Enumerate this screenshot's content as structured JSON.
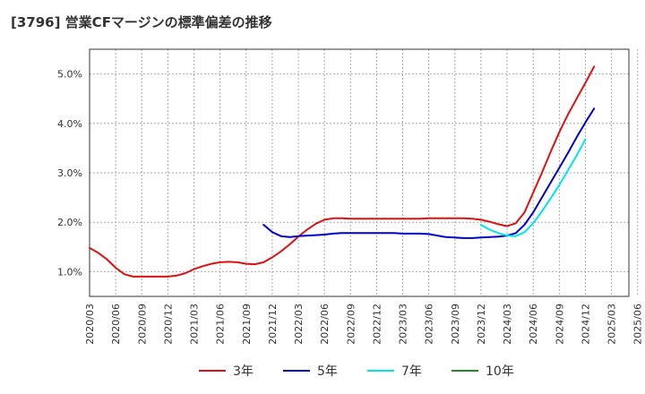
{
  "title": "[3796]  営業CFマージンの標準偏差の推移",
  "chart_data": {
    "type": "line",
    "title": "[3796]  営業CFマージンの標準偏差の推移",
    "xlabel": "",
    "ylabel": "",
    "y_unit": "%",
    "ylim": [
      0.5,
      5.5
    ],
    "yticks": [
      1.0,
      2.0,
      3.0,
      4.0,
      5.0
    ],
    "ytick_labels": [
      "1.0%",
      "2.0%",
      "3.0%",
      "4.0%",
      "5.0%"
    ],
    "x_tick_labels": [
      "2020/03",
      "2020/06",
      "2020/09",
      "2020/12",
      "2021/03",
      "2021/06",
      "2021/09",
      "2021/12",
      "2022/03",
      "2022/06",
      "2022/09",
      "2022/12",
      "2023/03",
      "2023/06",
      "2023/09",
      "2023/12",
      "2024/03",
      "2024/06",
      "2024/09",
      "2024/12",
      "2025/03",
      "2025/06"
    ],
    "x_months": [
      "2020/03",
      "2020/04",
      "2020/05",
      "2020/06",
      "2020/07",
      "2020/08",
      "2020/09",
      "2020/10",
      "2020/11",
      "2020/12",
      "2021/01",
      "2021/02",
      "2021/03",
      "2021/04",
      "2021/05",
      "2021/06",
      "2021/07",
      "2021/08",
      "2021/09",
      "2021/10",
      "2021/11",
      "2021/12",
      "2022/01",
      "2022/02",
      "2022/03",
      "2022/04",
      "2022/05",
      "2022/06",
      "2022/07",
      "2022/08",
      "2022/09",
      "2022/10",
      "2022/11",
      "2022/12",
      "2023/01",
      "2023/02",
      "2023/03",
      "2023/04",
      "2023/05",
      "2023/06",
      "2023/07",
      "2023/08",
      "2023/09",
      "2023/10",
      "2023/11",
      "2023/12",
      "2024/01",
      "2024/02",
      "2024/03",
      "2024/04",
      "2024/05",
      "2024/06",
      "2024/07",
      "2024/08",
      "2024/09",
      "2024/10",
      "2024/11",
      "2024/12",
      "2025/01",
      "2025/02",
      "2025/03"
    ],
    "grid": true,
    "legend_position": "bottom",
    "series": [
      {
        "name": "3年",
        "color": "#dd1111",
        "values": [
          1.48,
          1.38,
          1.25,
          1.08,
          0.95,
          0.9,
          0.9,
          0.9,
          0.9,
          0.9,
          0.92,
          0.97,
          1.05,
          1.11,
          1.16,
          1.19,
          1.2,
          1.19,
          1.16,
          1.15,
          1.19,
          1.29,
          1.41,
          1.55,
          1.71,
          1.85,
          1.97,
          2.05,
          2.08,
          2.08,
          2.07,
          2.07,
          2.07,
          2.07,
          2.07,
          2.07,
          2.07,
          2.07,
          2.07,
          2.08,
          2.08,
          2.08,
          2.08,
          2.08,
          2.07,
          2.05,
          2.01,
          1.96,
          1.92,
          1.98,
          2.2,
          2.6,
          3.0,
          3.42,
          3.82,
          4.18,
          4.5,
          4.82,
          5.15,
          null,
          null
        ]
      },
      {
        "name": "5年",
        "color": "#0000cc",
        "values": [
          null,
          null,
          null,
          null,
          null,
          null,
          null,
          null,
          null,
          null,
          null,
          null,
          null,
          null,
          null,
          null,
          null,
          null,
          null,
          null,
          1.95,
          1.8,
          1.72,
          1.7,
          1.72,
          1.73,
          1.74,
          1.75,
          1.77,
          1.78,
          1.78,
          1.78,
          1.78,
          1.78,
          1.78,
          1.78,
          1.77,
          1.77,
          1.77,
          1.76,
          1.73,
          1.7,
          1.69,
          1.68,
          1.68,
          1.69,
          1.7,
          1.71,
          1.73,
          1.78,
          1.95,
          2.2,
          2.5,
          2.8,
          3.1,
          3.4,
          3.72,
          4.02,
          4.3,
          null,
          null
        ]
      },
      {
        "name": "7年",
        "color": "#00e5ee",
        "values": [
          null,
          null,
          null,
          null,
          null,
          null,
          null,
          null,
          null,
          null,
          null,
          null,
          null,
          null,
          null,
          null,
          null,
          null,
          null,
          null,
          null,
          null,
          null,
          null,
          null,
          null,
          null,
          null,
          null,
          null,
          null,
          null,
          null,
          null,
          null,
          null,
          null,
          null,
          null,
          null,
          null,
          null,
          null,
          null,
          null,
          1.95,
          1.85,
          1.78,
          1.73,
          1.72,
          1.8,
          1.98,
          2.22,
          2.48,
          2.75,
          3.05,
          3.35,
          3.68,
          null,
          null,
          null
        ]
      },
      {
        "name": "10年",
        "color": "#228b22",
        "values": []
      }
    ]
  }
}
